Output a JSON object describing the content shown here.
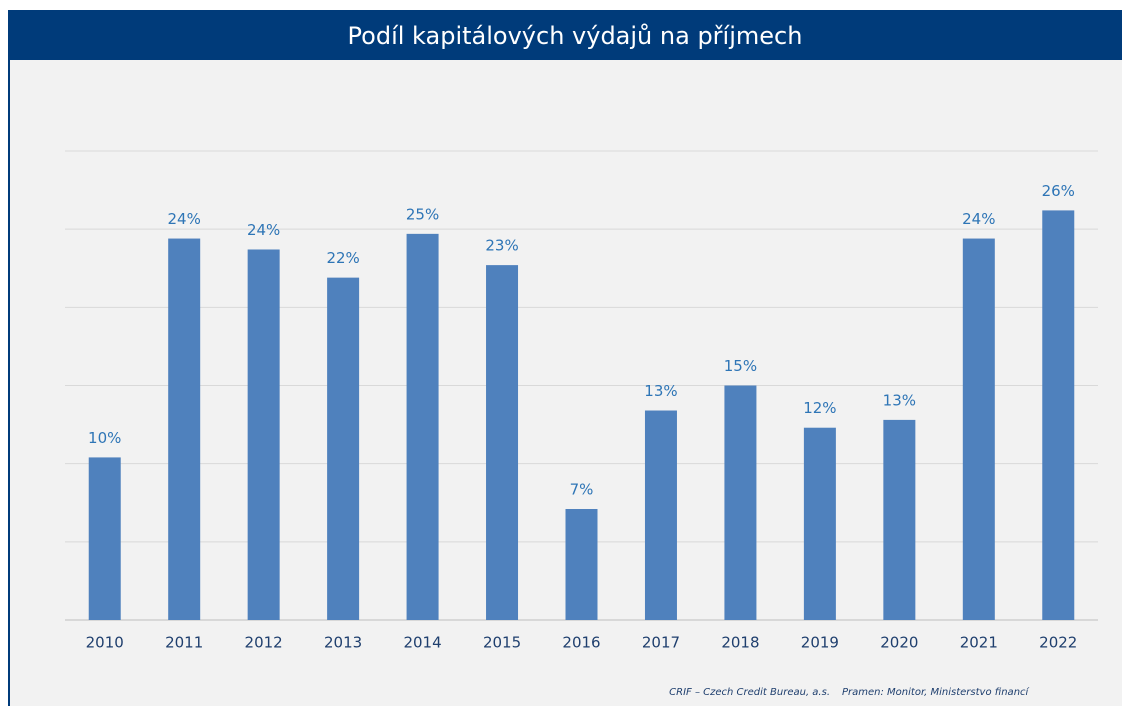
{
  "chart_data": {
    "type": "bar",
    "title": "Podíl kapitálových výdajů na příjmech",
    "categories": [
      "2010",
      "2011",
      "2012",
      "2013",
      "2014",
      "2015",
      "2016",
      "2017",
      "2018",
      "2019",
      "2020",
      "2021",
      "2022"
    ],
    "values": [
      10.4,
      24.4,
      23.7,
      21.9,
      24.7,
      22.7,
      7.1,
      13.4,
      15.0,
      12.3,
      12.8,
      24.4,
      26.2
    ],
    "value_labels": [
      "10%",
      "24%",
      "24%",
      "22%",
      "25%",
      "23%",
      "7%",
      "13%",
      "15%",
      "12%",
      "13%",
      "24%",
      "26%"
    ],
    "color": "#4f81bd",
    "ylim": [
      0,
      30
    ],
    "yticks": [
      0,
      5,
      10,
      15,
      20,
      25,
      30
    ],
    "grid": true,
    "footer": [
      "CRIF – Czech Credit Bureau, a.s.",
      "Pramen: Monitor, Ministerstvo financí"
    ]
  }
}
